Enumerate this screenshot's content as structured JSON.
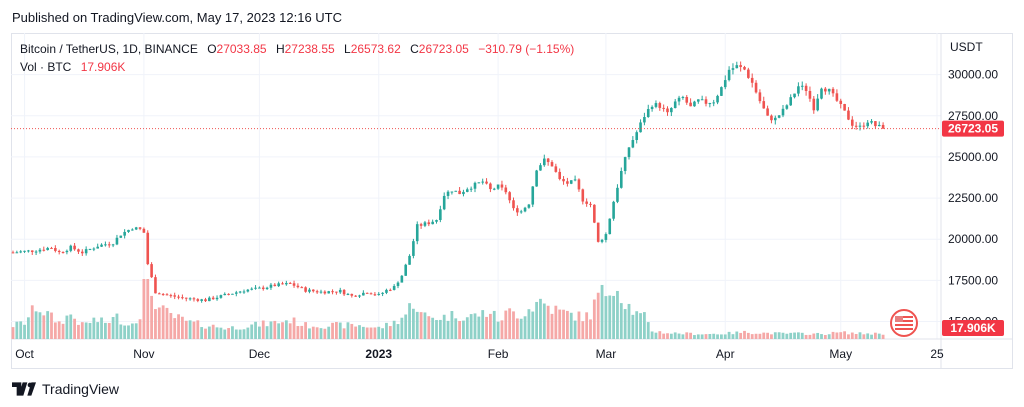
{
  "header": {
    "published": "Published on TradingView.com, May 17, 2023 12:16 UTC"
  },
  "legend": {
    "symbol": "Bitcoin / TetherUS, 1D, BINANCE",
    "o_label": "O",
    "o_value": "27033.85",
    "h_label": "H",
    "h_value": "27238.55",
    "l_label": "L",
    "l_value": "26573.62",
    "c_label": "C",
    "c_value": "26723.05",
    "change": "−310.79 (−1.15%)",
    "vol_label": "Vol · BTC",
    "vol_value": "17.906K"
  },
  "axis": {
    "currency": "USDT"
  },
  "footer": {
    "brand": "TradingView"
  },
  "colors": {
    "up": "#26a69a",
    "down": "#ef5350",
    "label_bg": "#f23645",
    "grid": "#f0f3fa",
    "vol_up": "#8ed1c8",
    "vol_down": "#f5a8a7"
  },
  "chart_data": {
    "type": "candlestick",
    "symbol": "BTCUSDT",
    "interval": "1D",
    "ylim": [
      14000,
      31800
    ],
    "y_ticks": [
      "30000.00",
      "27500.00",
      "25000.00",
      "22500.00",
      "20000.00",
      "17500.00",
      "15000.00"
    ],
    "y_tick_values": [
      30000,
      27500,
      25000,
      22500,
      20000,
      17500,
      15000
    ],
    "x_ticks": [
      {
        "label": "Oct",
        "day": 3
      },
      {
        "label": "Nov",
        "day": 34
      },
      {
        "label": "Dec",
        "day": 64
      },
      {
        "label": "2023",
        "day": 95,
        "bold": true
      },
      {
        "label": "Feb",
        "day": 126
      },
      {
        "label": "Mar",
        "day": 154
      },
      {
        "label": "Apr",
        "day": 185
      },
      {
        "label": "May",
        "day": 215
      },
      {
        "label": "25",
        "day": 240
      }
    ],
    "last_price": 26723.05,
    "last_price_label": "26723.05",
    "last_volume_label": "17.906K",
    "close_anchors": [
      [
        0,
        19200
      ],
      [
        5,
        19300
      ],
      [
        10,
        19500
      ],
      [
        12,
        19200
      ],
      [
        15,
        19500
      ],
      [
        18,
        19200
      ],
      [
        22,
        19600
      ],
      [
        26,
        19800
      ],
      [
        28,
        20300
      ],
      [
        31,
        20700
      ],
      [
        33,
        20600
      ],
      [
        34,
        20400
      ],
      [
        35,
        18500
      ],
      [
        37,
        16800
      ],
      [
        40,
        16600
      ],
      [
        45,
        16400
      ],
      [
        50,
        16300
      ],
      [
        55,
        16600
      ],
      [
        60,
        16900
      ],
      [
        64,
        17000
      ],
      [
        68,
        17200
      ],
      [
        72,
        17300
      ],
      [
        76,
        16900
      ],
      [
        80,
        16800
      ],
      [
        85,
        16850
      ],
      [
        88,
        16550
      ],
      [
        92,
        16800
      ],
      [
        95,
        16600
      ],
      [
        97,
        16900
      ],
      [
        99,
        17100
      ],
      [
        101,
        17800
      ],
      [
        103,
        19000
      ],
      [
        105,
        20800
      ],
      [
        108,
        21000
      ],
      [
        110,
        21200
      ],
      [
        112,
        22700
      ],
      [
        114,
        23000
      ],
      [
        116,
        22800
      ],
      [
        118,
        23100
      ],
      [
        120,
        23300
      ],
      [
        122,
        23500
      ],
      [
        124,
        23000
      ],
      [
        126,
        23200
      ],
      [
        128,
        22900
      ],
      [
        130,
        21800
      ],
      [
        132,
        21700
      ],
      [
        134,
        22200
      ],
      [
        136,
        24300
      ],
      [
        138,
        24800
      ],
      [
        140,
        24500
      ],
      [
        142,
        23600
      ],
      [
        144,
        23400
      ],
      [
        146,
        23500
      ],
      [
        148,
        22400
      ],
      [
        150,
        22100
      ],
      [
        152,
        19800
      ],
      [
        154,
        20300
      ],
      [
        156,
        22300
      ],
      [
        158,
        24100
      ],
      [
        160,
        25600
      ],
      [
        162,
        26500
      ],
      [
        164,
        27500
      ],
      [
        166,
        28200
      ],
      [
        168,
        28100
      ],
      [
        170,
        27600
      ],
      [
        172,
        28300
      ],
      [
        174,
        28600
      ],
      [
        176,
        28000
      ],
      [
        178,
        28400
      ],
      [
        180,
        28300
      ],
      [
        182,
        28400
      ],
      [
        184,
        29200
      ],
      [
        186,
        30300
      ],
      [
        188,
        30500
      ],
      [
        190,
        30300
      ],
      [
        192,
        29500
      ],
      [
        194,
        28400
      ],
      [
        196,
        27400
      ],
      [
        198,
        27300
      ],
      [
        200,
        27800
      ],
      [
        202,
        28500
      ],
      [
        204,
        29300
      ],
      [
        206,
        29100
      ],
      [
        208,
        28000
      ],
      [
        210,
        29300
      ],
      [
        212,
        29000
      ],
      [
        214,
        28400
      ],
      [
        216,
        27700
      ],
      [
        218,
        27000
      ],
      [
        220,
        26800
      ],
      [
        222,
        27200
      ],
      [
        224,
        26900
      ],
      [
        226,
        26723
      ]
    ],
    "volume_anchors": [
      [
        0,
        5
      ],
      [
        3,
        6
      ],
      [
        6,
        12
      ],
      [
        9,
        9
      ],
      [
        12,
        6
      ],
      [
        15,
        9
      ],
      [
        18,
        5
      ],
      [
        21,
        7
      ],
      [
        24,
        6
      ],
      [
        27,
        8
      ],
      [
        30,
        5
      ],
      [
        33,
        9
      ],
      [
        34,
        20
      ],
      [
        35,
        22
      ],
      [
        36,
        17
      ],
      [
        38,
        11
      ],
      [
        42,
        8
      ],
      [
        46,
        6
      ],
      [
        50,
        5
      ],
      [
        56,
        4
      ],
      [
        62,
        5
      ],
      [
        68,
        6
      ],
      [
        72,
        7
      ],
      [
        76,
        5
      ],
      [
        80,
        5
      ],
      [
        85,
        5
      ],
      [
        90,
        5
      ],
      [
        95,
        4
      ],
      [
        99,
        6
      ],
      [
        102,
        9
      ],
      [
        104,
        14
      ],
      [
        106,
        9
      ],
      [
        108,
        8
      ],
      [
        112,
        8
      ],
      [
        115,
        9
      ],
      [
        118,
        8
      ],
      [
        121,
        9
      ],
      [
        124,
        10
      ],
      [
        126,
        7
      ],
      [
        129,
        10
      ],
      [
        132,
        9
      ],
      [
        135,
        12
      ],
      [
        137,
        14
      ],
      [
        139,
        12
      ],
      [
        142,
        10
      ],
      [
        145,
        9
      ],
      [
        148,
        8
      ],
      [
        150,
        9
      ],
      [
        152,
        16
      ],
      [
        154,
        17
      ],
      [
        156,
        21
      ],
      [
        158,
        16
      ],
      [
        160,
        12
      ],
      [
        162,
        9
      ],
      [
        164,
        8
      ],
      [
        166,
        3
      ],
      [
        170,
        2.2
      ],
      [
        175,
        2
      ],
      [
        180,
        1.8
      ],
      [
        185,
        2
      ],
      [
        190,
        2.5
      ],
      [
        195,
        2.2
      ],
      [
        200,
        2
      ],
      [
        205,
        2
      ],
      [
        210,
        1.8
      ],
      [
        215,
        2.4
      ],
      [
        220,
        2
      ],
      [
        226,
        2
      ]
    ]
  }
}
